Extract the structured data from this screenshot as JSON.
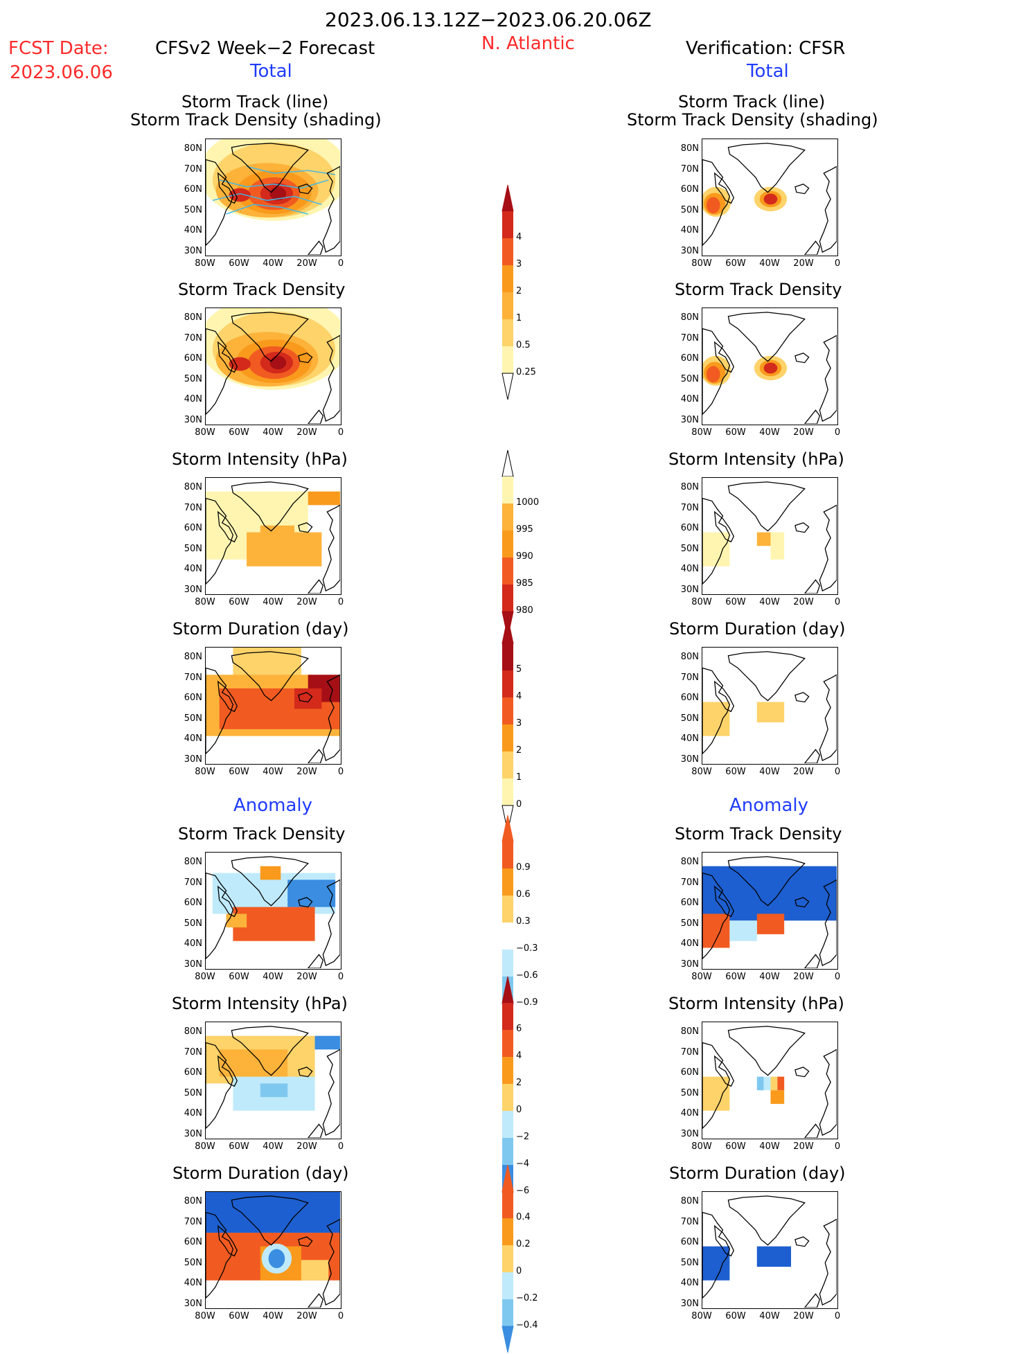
{
  "header": {
    "date_range": "2023.06.13.12Z−2023.06.20.06Z",
    "fcst_date_label": "FCST Date:",
    "fcst_date_value": "2023.06.06",
    "left_title": "CFSv2 Week−2 Forecast",
    "region": "N. Atlantic",
    "right_title": "Verification: CFSR",
    "left_total": "Total",
    "right_total": "Total",
    "left_anomaly": "Anomaly",
    "right_anomaly": "Anomaly"
  },
  "panel_titles": {
    "track_line": "Storm Track (line)",
    "track_shading": "Storm Track Density (shading)",
    "density": "Storm Track Density",
    "intensity": "Storm Intensity (hPa)",
    "duration": "Storm Duration (day)"
  },
  "axes": {
    "lat_labels": [
      "80N",
      "70N",
      "60N",
      "50N",
      "40N",
      "30N"
    ],
    "lon_labels": [
      "80W",
      "60W",
      "40W",
      "20W",
      "0"
    ]
  },
  "colorbars": {
    "density": [
      "4",
      "3",
      "2",
      "1",
      "0.5",
      "0.25"
    ],
    "intensity": [
      "1000",
      "995",
      "990",
      "985",
      "980"
    ],
    "duration": [
      "5",
      "4",
      "3",
      "2",
      "1",
      "0"
    ],
    "density_anom": [
      "0.9",
      "0.6",
      "0.3",
      "−0.3",
      "−0.6",
      "−0.9"
    ],
    "intensity_anom": [
      "6",
      "4",
      "2",
      "0",
      "−2",
      "−4",
      "−6"
    ],
    "duration_anom": [
      "0.4",
      "0.2",
      "0",
      "−0.2",
      "−0.4"
    ]
  },
  "colors": {
    "yellow_light": "#fff5b0",
    "yellow": "#fdd36a",
    "orange_light": "#fdb23a",
    "orange": "#f99a1c",
    "red_orange": "#f15b21",
    "red": "#d32a1c",
    "dark_red": "#a50f15",
    "blue_light": "#bfeafb",
    "blue_mid": "#7ec8f0",
    "blue": "#3a8de0",
    "blue_dark": "#1d5fd0",
    "track_line": "#3fb8e8"
  }
}
